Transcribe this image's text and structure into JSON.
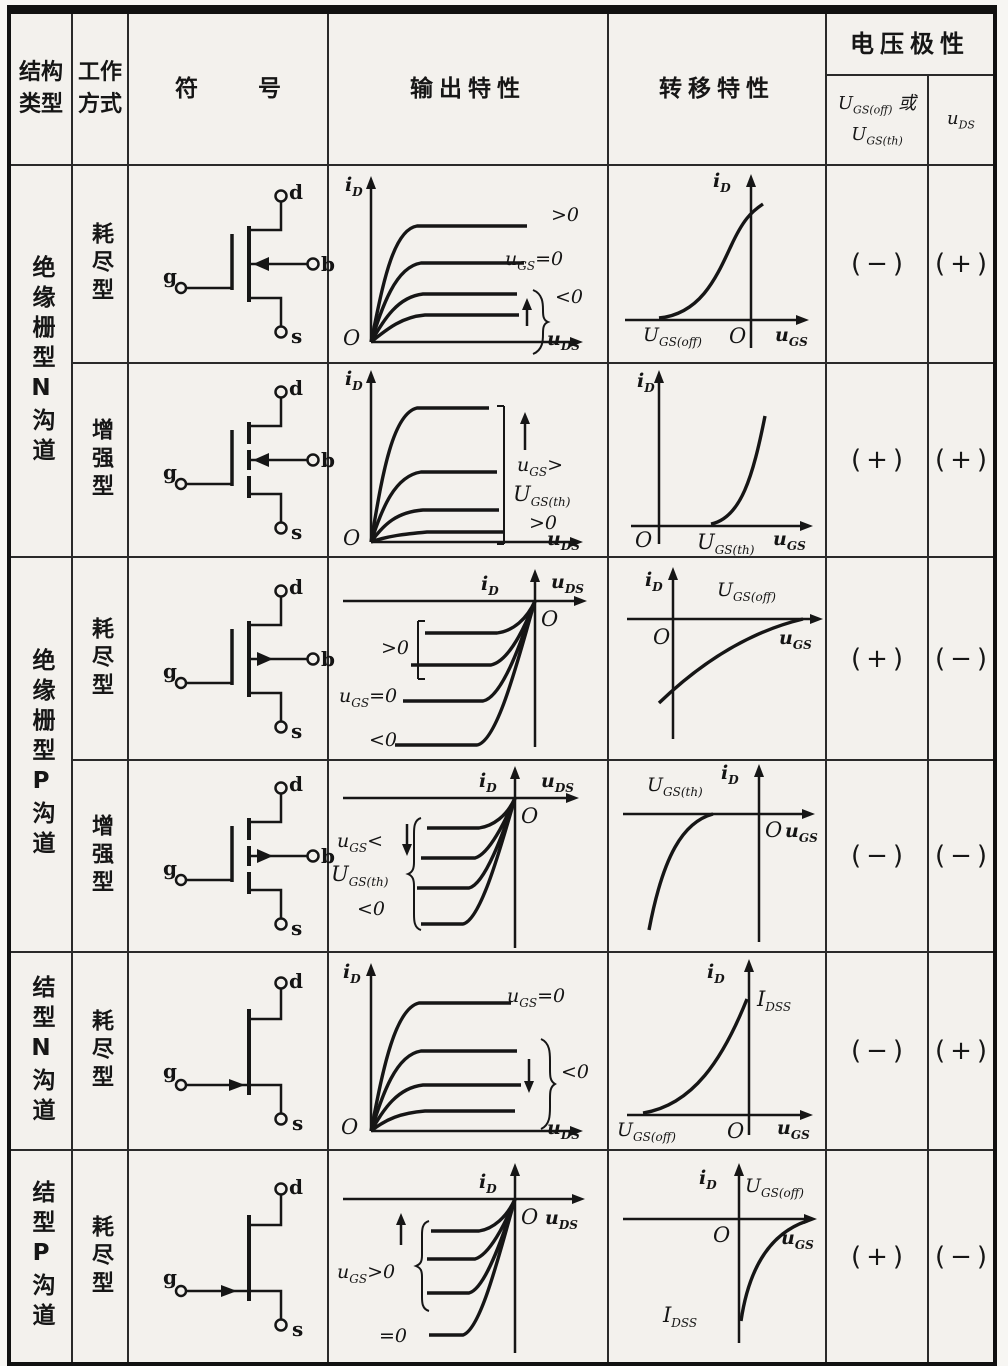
{
  "header": {
    "structure": "结构类型",
    "mode": "工作方式",
    "symbol": "符  号",
    "output": "输出特性",
    "transfer": "转移特性",
    "polarity": "电压极性",
    "polarity_sub1_line1": "U_GS(off) 或",
    "polarity_sub1_line2": "U_GS(th)",
    "polarity_sub2": "u_DS"
  },
  "terminals": {
    "d": "d",
    "g": "g",
    "s": "s",
    "b": "b"
  },
  "groups": [
    {
      "label": "绝缘栅型N沟道"
    },
    {
      "label": "绝缘栅型P沟道"
    },
    {
      "label": "结型N沟道"
    },
    {
      "label": "结型P沟道"
    }
  ],
  "rows": [
    {
      "mode": "耗尽型",
      "polarity_off": "(−)",
      "polarity_ds": "(+)",
      "output": {
        "y": "i_D",
        "x": "u_DS",
        "o": "O",
        "l1": ">0",
        "l2": "u_GS=0",
        "l3": "<0"
      },
      "transfer": {
        "y": "i_D",
        "x": "u_GS",
        "o": "O",
        "l1": "U_GS(off)"
      }
    },
    {
      "mode": "增强型",
      "polarity_off": "(+)",
      "polarity_ds": "(+)",
      "output": {
        "y": "i_D",
        "x": "u_DS",
        "o": "O",
        "l1": "u_GS>",
        "l2": "U_GS(th)",
        "l3": ">0"
      },
      "transfer": {
        "y": "i_D",
        "x": "u_GS",
        "o": "O",
        "l1": "U_GS(th)"
      }
    },
    {
      "mode": "耗尽型",
      "polarity_off": "(+)",
      "polarity_ds": "(−)",
      "output": {
        "y": "i_D",
        "x": "u_DS",
        "o": "O",
        "l1": ">0",
        "l2": "u_GS=0",
        "l3": "<0"
      },
      "transfer": {
        "y": "i_D",
        "x": "u_GS",
        "o": "O",
        "l1": "U_GS(off)"
      }
    },
    {
      "mode": "增强型",
      "polarity_off": "(−)",
      "polarity_ds": "(−)",
      "output": {
        "y": "i_D",
        "x": "u_DS",
        "o": "O",
        "l1": "u_GS<",
        "l2": "U_GS(th)",
        "l3": "<0"
      },
      "transfer": {
        "y": "i_D",
        "x": "u_GS",
        "o": "O",
        "l1": "U_GS(th)"
      }
    },
    {
      "mode": "耗尽型",
      "polarity_off": "(−)",
      "polarity_ds": "(+)",
      "output": {
        "y": "i_D",
        "x": "u_DS",
        "o": "O",
        "l1": "u_GS=0",
        "l2": "<0"
      },
      "transfer": {
        "y": "i_D",
        "x": "u_GS",
        "o": "O",
        "l1": "U_GS(off)",
        "l2": "I_DSS"
      }
    },
    {
      "mode": "耗尽型",
      "polarity_off": "(+)",
      "polarity_ds": "(−)",
      "output": {
        "y": "i_D",
        "x": "u_DS",
        "o": "O",
        "l1": "u_GS>0",
        "l2": "=0"
      },
      "transfer": {
        "y": "i_D",
        "x": "u_GS",
        "o": "O",
        "l1": "U_GS(off)",
        "l2": "I_DSS"
      }
    }
  ]
}
